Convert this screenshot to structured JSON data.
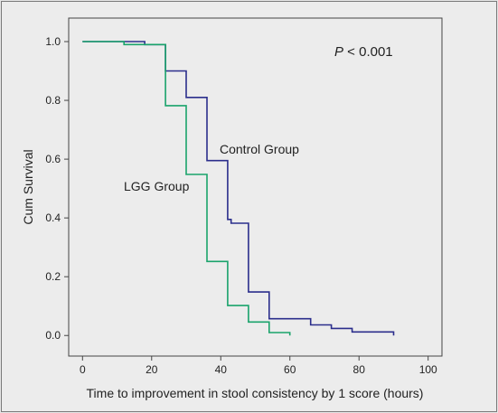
{
  "chart_data": {
    "type": "line",
    "xlabel": "Time to improvement in stool consistency by 1 score (hours)",
    "ylabel": "Cum Survival",
    "xlim": [
      -4,
      104
    ],
    "ylim": [
      -0.07,
      1.08
    ],
    "x_ticks": [
      "0",
      "20",
      "40",
      "60",
      "80",
      "100"
    ],
    "y_ticks": [
      "0.0",
      "0.2",
      "0.4",
      "0.6",
      "0.8",
      "1.0"
    ],
    "x_tick_values": [
      0,
      20,
      40,
      60,
      80,
      100
    ],
    "y_tick_values": [
      0.0,
      0.2,
      0.4,
      0.6,
      0.8,
      1.0
    ],
    "grid": false,
    "annotations": {
      "p_italic": "P",
      "p_rest": " < 0.001",
      "control_label": "Control Group",
      "lgg_label": "LGG Group"
    },
    "series": [
      {
        "name": "Control Group",
        "color": "#2b2e8c",
        "step_points": [
          [
            0,
            1.0
          ],
          [
            18,
            1.0
          ],
          [
            18,
            0.99
          ],
          [
            24,
            0.99
          ],
          [
            24,
            0.9
          ],
          [
            30,
            0.9
          ],
          [
            30,
            0.81
          ],
          [
            36,
            0.81
          ],
          [
            36,
            0.595
          ],
          [
            42,
            0.595
          ],
          [
            42,
            0.395
          ],
          [
            43,
            0.395
          ],
          [
            43,
            0.382
          ],
          [
            48,
            0.382
          ],
          [
            48,
            0.148
          ],
          [
            54,
            0.148
          ],
          [
            54,
            0.057
          ],
          [
            66,
            0.057
          ],
          [
            66,
            0.036
          ],
          [
            72,
            0.036
          ],
          [
            72,
            0.024
          ],
          [
            78,
            0.024
          ],
          [
            78,
            0.012
          ],
          [
            90,
            0.012
          ],
          [
            90,
            0.0
          ]
        ]
      },
      {
        "name": "LGG Group",
        "color": "#1aa36b",
        "step_points": [
          [
            0,
            1.0
          ],
          [
            12,
            1.0
          ],
          [
            12,
            0.99
          ],
          [
            24,
            0.99
          ],
          [
            24,
            0.782
          ],
          [
            30,
            0.782
          ],
          [
            30,
            0.548
          ],
          [
            36,
            0.548
          ],
          [
            36,
            0.252
          ],
          [
            42,
            0.252
          ],
          [
            42,
            0.102
          ],
          [
            48,
            0.102
          ],
          [
            48,
            0.046
          ],
          [
            54,
            0.046
          ],
          [
            54,
            0.01
          ],
          [
            60,
            0.01
          ],
          [
            60,
            0.0
          ]
        ]
      }
    ]
  }
}
